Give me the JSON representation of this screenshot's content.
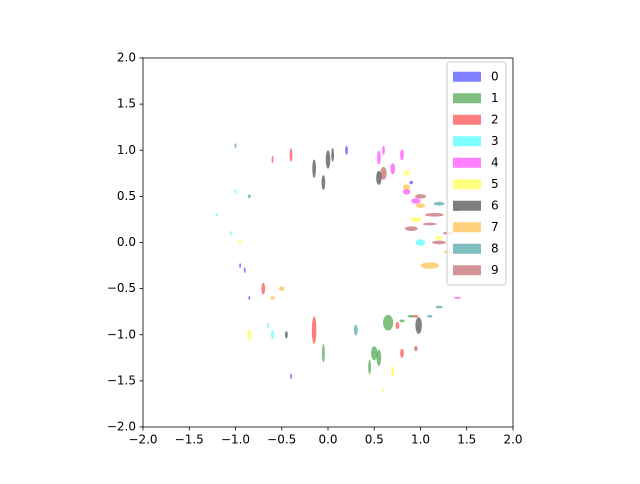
{
  "chart_data": {
    "type": "scatter",
    "marker": "ellipse",
    "alpha": 0.5,
    "grid": false,
    "legend": "upper right",
    "xlim": [
      -2,
      2
    ],
    "ylim": [
      -2,
      2
    ],
    "xticks": [
      {
        "value": -2,
        "label": "−2.0"
      },
      {
        "value": -1.5,
        "label": "−1.5"
      },
      {
        "value": -1,
        "label": "−1.0"
      },
      {
        "value": -0.5,
        "label": "−0.5"
      },
      {
        "value": 0,
        "label": "0.0"
      },
      {
        "value": 0.5,
        "label": "0.5"
      },
      {
        "value": 1,
        "label": "1.0"
      },
      {
        "value": 1.5,
        "label": "1.5"
      },
      {
        "value": 2,
        "label": "2.0"
      }
    ],
    "yticks": [
      {
        "value": -2,
        "label": "−2.0"
      },
      {
        "value": -1.5,
        "label": "−1.5"
      },
      {
        "value": -1,
        "label": "−1.0"
      },
      {
        "value": -0.5,
        "label": "−0.5"
      },
      {
        "value": 0,
        "label": "0.0"
      },
      {
        "value": 0.5,
        "label": "0.5"
      },
      {
        "value": 1,
        "label": "1.0"
      },
      {
        "value": 1.5,
        "label": "1.5"
      },
      {
        "value": 2,
        "label": "2.0"
      }
    ],
    "series": [
      {
        "name": "0",
        "color": "#0000ff",
        "x": [
          -0.9,
          -0.95,
          0.2,
          -0.4,
          -0.85,
          0.9
        ],
        "y": [
          -0.3,
          -0.25,
          1.0,
          -1.45,
          -0.6,
          0.65
        ],
        "widths": [
          0.02,
          0.02,
          0.03,
          0.02,
          0.02,
          0.04
        ],
        "heights": [
          0.06,
          0.05,
          0.1,
          0.06,
          0.04,
          0.04
        ]
      },
      {
        "name": "1",
        "color": "#008000",
        "x": [
          0.65,
          0.5,
          0.55,
          0.45,
          -0.05,
          0.8,
          0.9,
          -1.0
        ],
        "y": [
          -0.87,
          -1.2,
          -1.25,
          -1.35,
          -1.2,
          -0.85,
          -0.8,
          1.05
        ],
        "widths": [
          0.11,
          0.07,
          0.05,
          0.03,
          0.03,
          0.06,
          0.08,
          0.02
        ],
        "heights": [
          0.17,
          0.15,
          0.18,
          0.16,
          0.2,
          0.03,
          0.03,
          0.05
        ]
      },
      {
        "name": "2",
        "color": "#ff0000",
        "x": [
          -0.15,
          -0.7,
          0.8,
          -0.4,
          -0.6,
          0.95,
          0.75
        ],
        "y": [
          -0.95,
          -0.5,
          -1.2,
          0.95,
          0.9,
          -0.8,
          -0.9
        ],
        "widths": [
          0.05,
          0.04,
          0.04,
          0.03,
          0.02,
          0.05,
          0.04
        ],
        "heights": [
          0.3,
          0.13,
          0.1,
          0.15,
          0.08,
          0.03,
          0.08
        ]
      },
      {
        "name": "3",
        "color": "#00ffff",
        "x": [
          1.0,
          -1.2,
          -1.05,
          -0.6,
          -0.65,
          -1.0
        ],
        "y": [
          0.0,
          0.3,
          0.1,
          -1.0,
          -0.9,
          0.55
        ],
        "widths": [
          0.1,
          0.02,
          0.02,
          0.03,
          0.02,
          0.02
        ],
        "heights": [
          0.07,
          0.04,
          0.05,
          0.1,
          0.06,
          0.05
        ]
      },
      {
        "name": "4",
        "color": "#ff00ff",
        "x": [
          0.55,
          0.7,
          0.85,
          0.95,
          0.6,
          1.4,
          0.8
        ],
        "y": [
          0.92,
          0.8,
          0.55,
          0.45,
          1.0,
          -0.6,
          0.95
        ],
        "widths": [
          0.04,
          0.05,
          0.08,
          0.1,
          0.03,
          0.08,
          0.04
        ],
        "heights": [
          0.15,
          0.12,
          0.06,
          0.06,
          0.1,
          0.02,
          0.12
        ]
      },
      {
        "name": "5",
        "color": "#ffff00",
        "x": [
          0.95,
          0.7,
          0.85,
          -0.95,
          -0.85,
          0.6,
          1.2
        ],
        "y": [
          0.25,
          -1.4,
          0.75,
          0.0,
          -1.0,
          -1.6,
          0.05
        ],
        "widths": [
          0.12,
          0.03,
          0.06,
          0.03,
          0.04,
          0.02,
          0.08
        ],
        "heights": [
          0.05,
          0.12,
          0.06,
          0.05,
          0.12,
          0.06,
          0.04
        ]
      },
      {
        "name": "6",
        "color": "#000000",
        "x": [
          -0.15,
          0.0,
          -0.05,
          0.55,
          0.98,
          -0.45,
          0.05
        ],
        "y": [
          0.8,
          0.9,
          0.65,
          0.7,
          -0.9,
          -1.0,
          0.95
        ],
        "widths": [
          0.04,
          0.05,
          0.04,
          0.06,
          0.07,
          0.03,
          0.03
        ],
        "heights": [
          0.2,
          0.2,
          0.16,
          0.15,
          0.18,
          0.08,
          0.15
        ]
      },
      {
        "name": "7",
        "color": "#ffa500",
        "x": [
          1.1,
          0.85,
          1.0,
          -0.5,
          -0.6,
          1.3
        ],
        "y": [
          -0.25,
          0.6,
          0.4,
          -0.5,
          -0.6,
          -0.1
        ],
        "widths": [
          0.2,
          0.08,
          0.1,
          0.06,
          0.05,
          0.1
        ],
        "heights": [
          0.07,
          0.06,
          0.05,
          0.05,
          0.04,
          0.03
        ]
      },
      {
        "name": "8",
        "color": "#008080",
        "x": [
          1.2,
          0.3,
          1.1,
          1.2,
          1.4,
          -0.85
        ],
        "y": [
          0.42,
          -0.95,
          -0.8,
          -0.7,
          0.35,
          0.5
        ],
        "widths": [
          0.12,
          0.04,
          0.06,
          0.08,
          0.08,
          0.03
        ],
        "heights": [
          0.04,
          0.12,
          0.03,
          0.03,
          0.03,
          0.04
        ]
      },
      {
        "name": "9",
        "color": "#a52a2a",
        "x": [
          0.9,
          1.0,
          1.15,
          1.2,
          0.6,
          1.3,
          1.1,
          0.95
        ],
        "y": [
          0.15,
          0.5,
          0.3,
          0.0,
          0.75,
          0.1,
          0.2,
          -1.15
        ],
        "widths": [
          0.14,
          0.12,
          0.2,
          0.15,
          0.07,
          0.12,
          0.15,
          0.04
        ],
        "heights": [
          0.05,
          0.05,
          0.04,
          0.04,
          0.14,
          0.03,
          0.03,
          0.06
        ]
      }
    ]
  }
}
